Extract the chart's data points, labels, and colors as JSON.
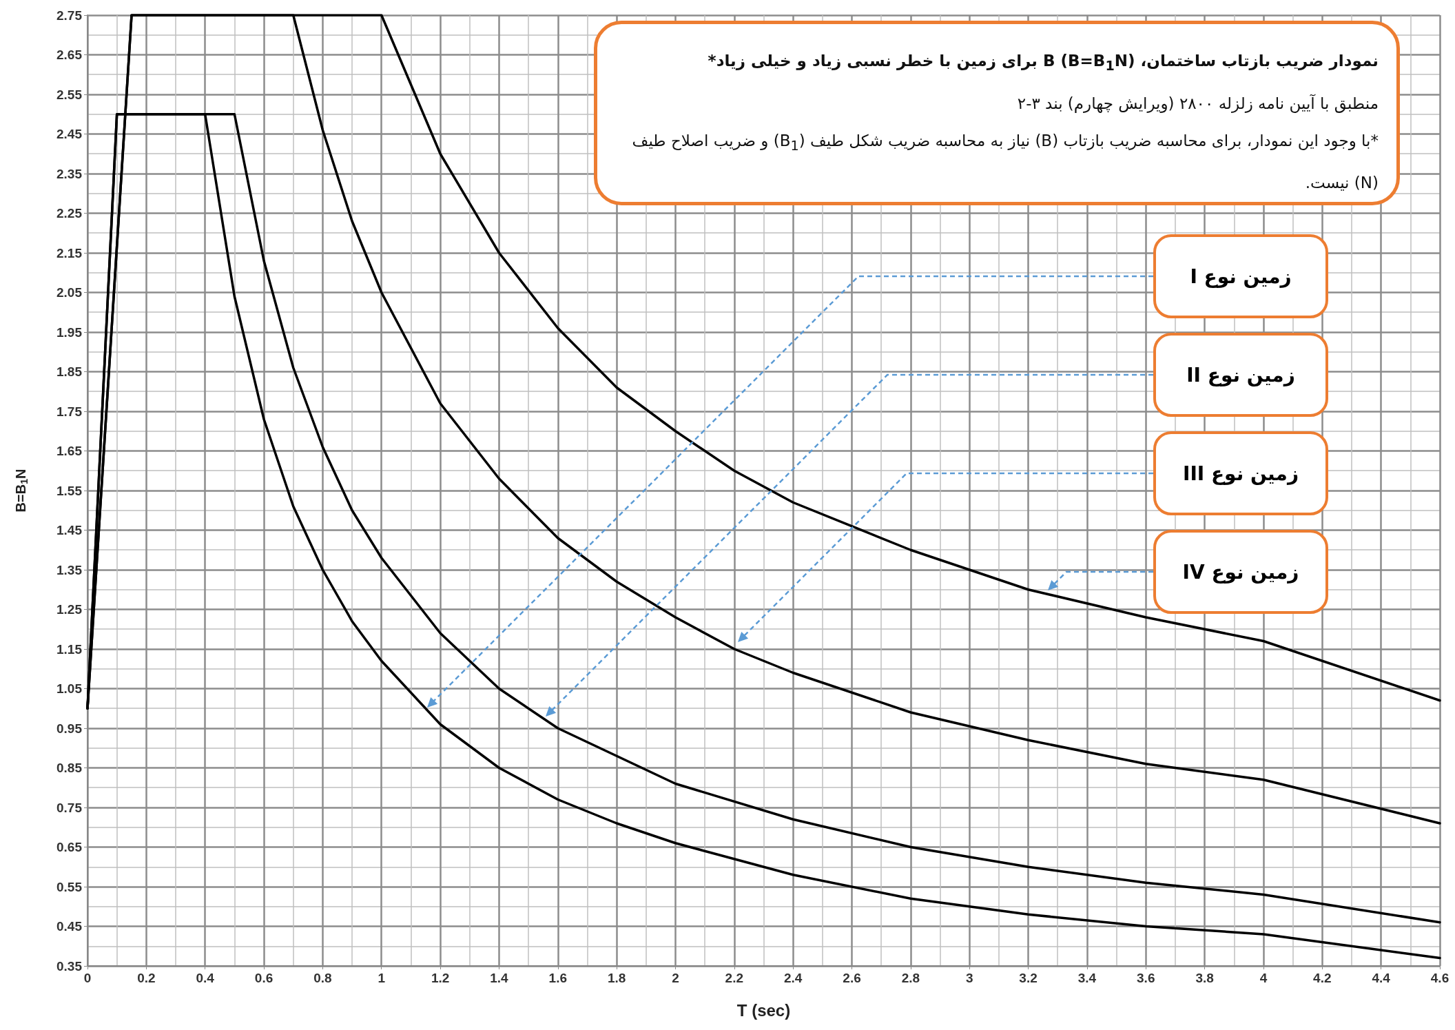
{
  "chart_data": {
    "type": "line",
    "title": "نمودار ضریب بازتاب ساختمان، B (B=B$_{1}$N) برای زمین با خطر نسبی زیاد و خیلی زیاد*",
    "subtitle": "منطبق با آیین نامه زلزله ۲۸۰۰ (ویرایش چهارم) بند ۳-۲",
    "xlabel": "T (sec)",
    "ylabel": "B=B$_{1}$N",
    "annotations": [
      "*با وجود این نمودار، برای محاسبه ضریب بازتاب (B) نیاز به محاسبه ضریب شکل طیف (B$_{1}$) و ضریب اصلاح طیف (N) نیست.",
      "زمین نوع I",
      "زمین نوع II",
      "زمین نوع III",
      "زمین نوع IV"
    ],
    "series": [
      {
        "color": "#000000",
        "x": [
          0,
          0.1,
          0.4,
          0.5,
          0.6,
          0.7,
          0.8,
          0.9,
          1.0,
          1.2,
          1.4,
          1.6,
          1.8,
          2.0,
          2.4,
          2.8,
          3.2,
          3.6,
          4.0,
          4.6
        ],
        "values": [
          1.0,
          2.5,
          2.5,
          2.04,
          1.73,
          1.51,
          1.35,
          1.22,
          1.12,
          0.96,
          0.85,
          0.77,
          0.71,
          0.66,
          0.58,
          0.52,
          0.48,
          0.45,
          0.43,
          0.37
        ]
      },
      {
        "color": "#000000",
        "x": [
          0,
          0.1,
          0.5,
          0.6,
          0.7,
          0.8,
          0.9,
          1.0,
          1.2,
          1.4,
          1.6,
          1.8,
          2.0,
          2.4,
          2.8,
          3.2,
          3.6,
          4.0,
          4.6
        ],
        "values": [
          1.0,
          2.5,
          2.5,
          2.13,
          1.86,
          1.66,
          1.5,
          1.38,
          1.19,
          1.05,
          0.95,
          0.88,
          0.81,
          0.72,
          0.65,
          0.6,
          0.56,
          0.53,
          0.46
        ]
      },
      {
        "color": "#000000",
        "x": [
          0,
          0.15,
          0.7,
          0.8,
          0.9,
          1.0,
          1.2,
          1.4,
          1.6,
          1.8,
          2.0,
          2.2,
          2.4,
          2.8,
          3.2,
          3.6,
          4.0,
          4.6
        ],
        "values": [
          1.0,
          2.75,
          2.75,
          2.46,
          2.23,
          2.05,
          1.77,
          1.58,
          1.43,
          1.32,
          1.23,
          1.15,
          1.09,
          0.99,
          0.92,
          0.86,
          0.82,
          0.71
        ]
      },
      {
        "color": "#000000",
        "x": [
          0,
          0.15,
          1.0,
          1.2,
          1.4,
          1.6,
          1.8,
          2.0,
          2.2,
          2.4,
          2.8,
          3.2,
          3.6,
          4.0,
          4.6
        ],
        "values": [
          1.0,
          2.75,
          2.75,
          2.4,
          2.15,
          1.96,
          1.81,
          1.7,
          1.6,
          1.52,
          1.4,
          1.3,
          1.23,
          1.17,
          1.02
        ]
      }
    ],
    "xlim": [
      0,
      4.6
    ],
    "xticks": [
      0,
      0.2,
      0.4,
      0.6,
      0.8,
      1,
      1.2,
      1.4,
      1.6,
      1.8,
      2,
      2.2,
      2.4,
      2.6,
      2.8,
      3,
      3.2,
      3.4,
      3.6,
      3.8,
      4,
      4.2,
      4.4,
      4.6
    ],
    "ylim": [
      0.35,
      2.75
    ],
    "yticks": [
      0.35,
      0.45,
      0.55,
      0.65,
      0.75,
      0.85,
      0.95,
      1.05,
      1.15,
      1.25,
      1.35,
      1.45,
      1.55,
      1.65,
      1.75,
      1.85,
      1.95,
      2.05,
      2.15,
      2.25,
      2.35,
      2.45,
      2.55,
      2.65,
      2.75
    ],
    "grid": true,
    "marker": "none",
    "line_style": "solid"
  }
}
